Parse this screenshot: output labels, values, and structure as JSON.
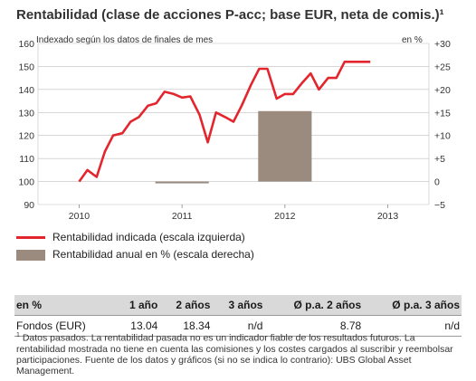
{
  "title": "Rentabilidad (clase de acciones P-acc; base EUR, neta de comis.)¹",
  "left_axis_note": "Indexado según los datos de finales de mes",
  "right_axis_note": "en %",
  "legend": [
    {
      "label": "Rentabilidad indicada (escala izquierda)",
      "color": "#e3262d"
    },
    {
      "label": "Rentabilidad anual en % (escala derecha)",
      "color": "#9a8b7e"
    }
  ],
  "table": {
    "headers": [
      "en %",
      "1 año",
      "2 años",
      "3 años",
      "Ø p.a. 2 años",
      "Ø p.a. 3 años"
    ],
    "rows": [
      [
        "Fondos (EUR)",
        "13.04",
        "18.34",
        "n/d",
        "8.78",
        "n/d"
      ]
    ]
  },
  "footnote": {
    "marker": "1",
    "text": "Datos pasados. La rentabilidad pasada no es un indicador fiable de los resultados futuros. La rentabilidad mostrada no tiene en cuenta las comisiones y los costes cargados al suscribir y reembolsar participaciones. Fuente de los datos y gráficos (si no se indica lo contrario): UBS Global Asset Management."
  },
  "chart_data": {
    "type": "line",
    "x_ticks": [
      "2010",
      "2011",
      "2012",
      "2013"
    ],
    "left_ticks": [
      "160",
      "150",
      "140",
      "130",
      "120",
      "110",
      "100",
      "90"
    ],
    "right_ticks": [
      "+30",
      "+25",
      "+20",
      "+15",
      "+10",
      "+5",
      "0",
      "−5"
    ],
    "ylim_left": [
      90,
      160
    ],
    "ylim_right": [
      -5,
      30
    ],
    "xlim": [
      2009.6,
      2013.4
    ],
    "line": {
      "name": "Rentabilidad indicada (escala izquierda)",
      "color": "#e3262d",
      "x": [
        2010.0,
        2010.08,
        2010.17,
        2010.25,
        2010.33,
        2010.42,
        2010.5,
        2010.58,
        2010.67,
        2010.75,
        2010.83,
        2010.92,
        2011.0,
        2011.08,
        2011.17,
        2011.25,
        2011.33,
        2011.42,
        2011.5,
        2011.58,
        2011.67,
        2011.75,
        2011.83,
        2011.92,
        2012.0,
        2012.08,
        2012.17,
        2012.25,
        2012.33,
        2012.42,
        2012.5,
        2012.58,
        2012.67,
        2012.75,
        2012.83
      ],
      "y": [
        100,
        105,
        102,
        113,
        120,
        121,
        126,
        128,
        133,
        134,
        139,
        138,
        136.5,
        137,
        129,
        117,
        130,
        128,
        126,
        133,
        142,
        149,
        149,
        136,
        138,
        138,
        143,
        147,
        140,
        145,
        145,
        152,
        152,
        152,
        152
      ]
    },
    "bars": {
      "name": "Rentabilidad anual en % (escala derecha)",
      "color": "#9a8b7e",
      "categories": [
        "2010",
        "2011",
        "2012"
      ],
      "values": [
        null,
        -0.4,
        15.3
      ]
    }
  }
}
